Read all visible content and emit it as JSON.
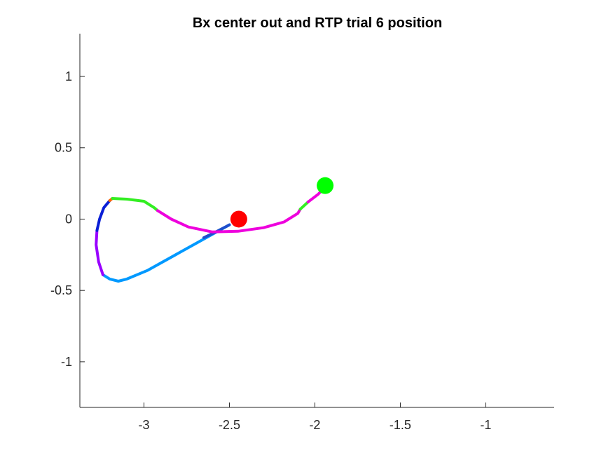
{
  "chart_data": {
    "type": "line",
    "title": "Bx  center out and RTP trial 6 position",
    "xlabel": "",
    "ylabel": "",
    "xlim": [
      -3.375,
      -0.6
    ],
    "ylim": [
      -1.32,
      1.3
    ],
    "xticks": [
      -3,
      -2.5,
      -2,
      -1.5,
      -1
    ],
    "xtick_labels": [
      "-3",
      "-2.5",
      "-2",
      "-1.5",
      "-1"
    ],
    "yticks": [
      1,
      0.5,
      0,
      -0.5,
      -1
    ],
    "ytick_labels": [
      "1",
      "0.5",
      "0",
      "-0.5",
      "-1"
    ],
    "grid": false,
    "legend": "none",
    "segments": [
      {
        "color": "#0099ff",
        "points": [
          [
            -2.5,
            -0.04
          ],
          [
            -2.62,
            -0.12
          ],
          [
            -2.8,
            -0.24
          ],
          [
            -2.98,
            -0.36
          ],
          [
            -3.1,
            -0.42
          ],
          [
            -3.15,
            -0.435
          ],
          [
            -3.2,
            -0.42
          ],
          [
            -3.24,
            -0.39
          ]
        ]
      },
      {
        "color": "#1f4ecc",
        "points": [
          [
            -2.5,
            -0.04
          ],
          [
            -2.58,
            -0.09
          ],
          [
            -2.65,
            -0.13
          ]
        ]
      },
      {
        "color": "#9900ff",
        "points": [
          [
            -3.24,
            -0.39
          ],
          [
            -3.265,
            -0.3
          ],
          [
            -3.28,
            -0.18
          ],
          [
            -3.275,
            -0.08
          ]
        ]
      },
      {
        "color": "#0a1fd6",
        "points": [
          [
            -3.275,
            -0.08
          ],
          [
            -3.26,
            0.0
          ],
          [
            -3.235,
            0.08
          ],
          [
            -3.2,
            0.13
          ]
        ]
      },
      {
        "color": "#ff6600",
        "points": [
          [
            -3.2,
            0.13
          ],
          [
            -3.185,
            0.145
          ]
        ]
      },
      {
        "color": "#33ee22",
        "points": [
          [
            -3.185,
            0.145
          ],
          [
            -3.1,
            0.14
          ],
          [
            -3.0,
            0.125
          ],
          [
            -2.94,
            0.08
          ],
          [
            -2.92,
            0.06
          ]
        ]
      },
      {
        "color": "#ee00dd",
        "points": [
          [
            -2.92,
            0.06
          ],
          [
            -2.84,
            0.0
          ],
          [
            -2.74,
            -0.055
          ],
          [
            -2.6,
            -0.09
          ],
          [
            -2.45,
            -0.085
          ],
          [
            -2.3,
            -0.06
          ],
          [
            -2.18,
            -0.02
          ],
          [
            -2.1,
            0.04
          ],
          [
            -2.085,
            0.07
          ]
        ]
      },
      {
        "color": "#33ee22",
        "points": [
          [
            -2.085,
            0.07
          ],
          [
            -2.04,
            0.12
          ]
        ]
      },
      {
        "color": "#ee00dd",
        "points": [
          [
            -2.04,
            0.12
          ],
          [
            -1.98,
            0.175
          ],
          [
            -1.945,
            0.22
          ]
        ]
      }
    ],
    "markers": [
      {
        "label": "start",
        "x": -2.445,
        "y": 0.0,
        "color": "#ff0000"
      },
      {
        "label": "end",
        "x": -1.94,
        "y": 0.235,
        "color": "#00ff00"
      }
    ]
  }
}
